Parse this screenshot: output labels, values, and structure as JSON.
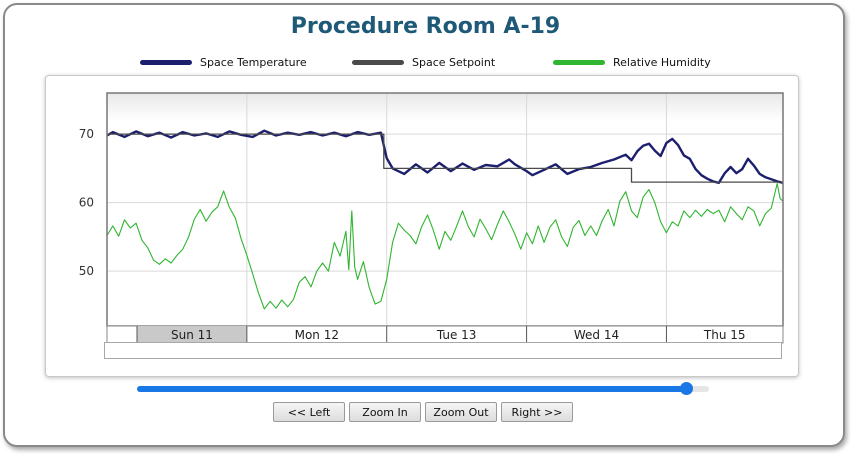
{
  "chart_data": {
    "type": "line",
    "title": "Procedure Room A-19",
    "legend_position": "top",
    "grid": true,
    "ylim": [
      42,
      76
    ],
    "yticks": [
      50,
      60,
      70
    ],
    "x_range": [
      "2020-10-11T00:00",
      "2020-10-15T20:00"
    ],
    "x_ticks": [
      "Sun 11",
      "Mon 12",
      "Tue 13",
      "Wed 14",
      "Thu 15"
    ],
    "selected_tick": "Sun 11",
    "series": [
      {
        "name": "Space Temperature",
        "color": "#1c1f6e",
        "points": [
          [
            "2020-10-11T00:00",
            69.8
          ],
          [
            "2020-10-11T01:00",
            70.3
          ],
          [
            "2020-10-11T03:00",
            69.6
          ],
          [
            "2020-10-11T05:00",
            70.4
          ],
          [
            "2020-10-11T07:00",
            69.7
          ],
          [
            "2020-10-11T09:00",
            70.2
          ],
          [
            "2020-10-11T11:00",
            69.5
          ],
          [
            "2020-10-11T13:00",
            70.3
          ],
          [
            "2020-10-11T15:00",
            69.8
          ],
          [
            "2020-10-11T17:00",
            70.1
          ],
          [
            "2020-10-11T19:00",
            69.6
          ],
          [
            "2020-10-11T21:00",
            70.4
          ],
          [
            "2020-10-11T23:00",
            69.9
          ],
          [
            "2020-10-12T01:00",
            69.6
          ],
          [
            "2020-10-12T03:00",
            70.5
          ],
          [
            "2020-10-12T05:00",
            69.8
          ],
          [
            "2020-10-12T07:00",
            70.2
          ],
          [
            "2020-10-12T09:00",
            69.9
          ],
          [
            "2020-10-12T11:00",
            70.3
          ],
          [
            "2020-10-12T13:00",
            69.8
          ],
          [
            "2020-10-12T15:00",
            70.2
          ],
          [
            "2020-10-12T17:00",
            69.7
          ],
          [
            "2020-10-12T19:00",
            70.3
          ],
          [
            "2020-10-12T21:00",
            69.9
          ],
          [
            "2020-10-12T23:00",
            70.2
          ],
          [
            "2020-10-13T00:00",
            66.5
          ],
          [
            "2020-10-13T01:00",
            65.0
          ],
          [
            "2020-10-13T03:00",
            64.2
          ],
          [
            "2020-10-13T05:00",
            65.6
          ],
          [
            "2020-10-13T07:00",
            64.4
          ],
          [
            "2020-10-13T09:00",
            65.8
          ],
          [
            "2020-10-13T11:00",
            64.6
          ],
          [
            "2020-10-13T13:00",
            65.7
          ],
          [
            "2020-10-13T15:00",
            64.8
          ],
          [
            "2020-10-13T17:00",
            65.5
          ],
          [
            "2020-10-13T19:00",
            65.3
          ],
          [
            "2020-10-13T21:00",
            66.3
          ],
          [
            "2020-10-13T22:00",
            65.6
          ],
          [
            "2020-10-14T00:00",
            64.6
          ],
          [
            "2020-10-14T01:00",
            64.0
          ],
          [
            "2020-10-14T03:00",
            64.8
          ],
          [
            "2020-10-14T05:00",
            65.6
          ],
          [
            "2020-10-14T07:00",
            64.2
          ],
          [
            "2020-10-14T09:00",
            64.9
          ],
          [
            "2020-10-14T11:00",
            65.2
          ],
          [
            "2020-10-14T13:00",
            65.8
          ],
          [
            "2020-10-14T15:00",
            66.3
          ],
          [
            "2020-10-14T17:00",
            67.0
          ],
          [
            "2020-10-14T18:00",
            66.2
          ],
          [
            "2020-10-14T19:00",
            67.5
          ],
          [
            "2020-10-14T20:00",
            68.3
          ],
          [
            "2020-10-14T21:00",
            68.6
          ],
          [
            "2020-10-14T22:00",
            67.6
          ],
          [
            "2020-10-14T23:00",
            66.8
          ],
          [
            "2020-10-15T00:00",
            68.7
          ],
          [
            "2020-10-15T01:00",
            69.3
          ],
          [
            "2020-10-15T02:00",
            68.4
          ],
          [
            "2020-10-15T03:00",
            66.9
          ],
          [
            "2020-10-15T04:00",
            66.4
          ],
          [
            "2020-10-15T05:00",
            64.9
          ],
          [
            "2020-10-15T06:00",
            64.0
          ],
          [
            "2020-10-15T07:00",
            63.5
          ],
          [
            "2020-10-15T08:00",
            63.1
          ],
          [
            "2020-10-15T09:00",
            62.9
          ],
          [
            "2020-10-15T10:00",
            64.3
          ],
          [
            "2020-10-15T11:00",
            65.2
          ],
          [
            "2020-10-15T12:00",
            64.3
          ],
          [
            "2020-10-15T13:00",
            64.9
          ],
          [
            "2020-10-15T14:00",
            66.4
          ],
          [
            "2020-10-15T15:00",
            65.4
          ],
          [
            "2020-10-15T16:00",
            64.2
          ],
          [
            "2020-10-15T17:00",
            63.7
          ],
          [
            "2020-10-15T18:00",
            63.4
          ],
          [
            "2020-10-15T19:00",
            63.1
          ],
          [
            "2020-10-15T20:00",
            62.9
          ]
        ]
      },
      {
        "name": "Space Setpoint",
        "color": "#4a4a4a",
        "points": [
          [
            "2020-10-11T00:00",
            70
          ],
          [
            "2020-10-12T23:30",
            70
          ],
          [
            "2020-10-12T23:30",
            65
          ],
          [
            "2020-10-14T18:00",
            65
          ],
          [
            "2020-10-14T18:00",
            63
          ],
          [
            "2020-10-15T20:00",
            63
          ]
        ]
      },
      {
        "name": "Relative Humidity",
        "color": "#2fb52f",
        "points": [
          [
            "2020-10-11T00:00",
            55.2
          ],
          [
            "2020-10-11T01:00",
            56.6
          ],
          [
            "2020-10-11T02:00",
            55.1
          ],
          [
            "2020-10-11T03:00",
            57.5
          ],
          [
            "2020-10-11T04:00",
            56.3
          ],
          [
            "2020-10-11T05:00",
            57.0
          ],
          [
            "2020-10-11T06:00",
            54.5
          ],
          [
            "2020-10-11T07:00",
            53.4
          ],
          [
            "2020-10-11T08:00",
            51.6
          ],
          [
            "2020-10-11T09:00",
            51.0
          ],
          [
            "2020-10-11T10:00",
            51.8
          ],
          [
            "2020-10-11T11:00",
            51.2
          ],
          [
            "2020-10-11T12:00",
            52.3
          ],
          [
            "2020-10-11T13:00",
            53.2
          ],
          [
            "2020-10-11T14:00",
            55.0
          ],
          [
            "2020-10-11T15:00",
            57.6
          ],
          [
            "2020-10-11T16:00",
            59.0
          ],
          [
            "2020-10-11T17:00",
            57.3
          ],
          [
            "2020-10-11T18:00",
            58.6
          ],
          [
            "2020-10-11T19:00",
            59.4
          ],
          [
            "2020-10-11T20:00",
            61.7
          ],
          [
            "2020-10-11T21:00",
            59.3
          ],
          [
            "2020-10-11T22:00",
            57.8
          ],
          [
            "2020-10-11T23:00",
            54.8
          ],
          [
            "2020-10-12T00:00",
            52.3
          ],
          [
            "2020-10-12T01:00",
            49.6
          ],
          [
            "2020-10-12T02:00",
            46.8
          ],
          [
            "2020-10-12T03:00",
            44.5
          ],
          [
            "2020-10-12T04:00",
            45.6
          ],
          [
            "2020-10-12T05:00",
            44.6
          ],
          [
            "2020-10-12T06:00",
            45.8
          ],
          [
            "2020-10-12T07:00",
            44.8
          ],
          [
            "2020-10-12T08:00",
            45.9
          ],
          [
            "2020-10-12T09:00",
            48.4
          ],
          [
            "2020-10-12T10:00",
            49.2
          ],
          [
            "2020-10-12T11:00",
            47.7
          ],
          [
            "2020-10-12T12:00",
            50.0
          ],
          [
            "2020-10-12T13:00",
            51.2
          ],
          [
            "2020-10-12T14:00",
            50.0
          ],
          [
            "2020-10-12T15:00",
            54.2
          ],
          [
            "2020-10-12T16:00",
            52.2
          ],
          [
            "2020-10-12T17:00",
            55.8
          ],
          [
            "2020-10-12T17:30",
            50.2
          ],
          [
            "2020-10-12T18:00",
            58.8
          ],
          [
            "2020-10-12T18:30",
            50.6
          ],
          [
            "2020-10-12T19:00",
            48.8
          ],
          [
            "2020-10-12T20:00",
            51.4
          ],
          [
            "2020-10-12T21:00",
            47.6
          ],
          [
            "2020-10-12T22:00",
            45.2
          ],
          [
            "2020-10-12T23:00",
            45.6
          ],
          [
            "2020-10-13T00:00",
            48.8
          ],
          [
            "2020-10-13T01:00",
            54.2
          ],
          [
            "2020-10-13T02:00",
            57.0
          ],
          [
            "2020-10-13T03:00",
            56.0
          ],
          [
            "2020-10-13T04:00",
            55.2
          ],
          [
            "2020-10-13T05:00",
            54.0
          ],
          [
            "2020-10-13T06:00",
            56.5
          ],
          [
            "2020-10-13T07:00",
            58.2
          ],
          [
            "2020-10-13T08:00",
            56.0
          ],
          [
            "2020-10-13T09:00",
            53.2
          ],
          [
            "2020-10-13T10:00",
            55.8
          ],
          [
            "2020-10-13T11:00",
            54.5
          ],
          [
            "2020-10-13T12:00",
            56.6
          ],
          [
            "2020-10-13T13:00",
            58.8
          ],
          [
            "2020-10-13T14:00",
            56.5
          ],
          [
            "2020-10-13T15:00",
            55.0
          ],
          [
            "2020-10-13T16:00",
            57.6
          ],
          [
            "2020-10-13T17:00",
            56.2
          ],
          [
            "2020-10-13T18:00",
            54.6
          ],
          [
            "2020-10-13T19:00",
            56.8
          ],
          [
            "2020-10-13T20:00",
            58.8
          ],
          [
            "2020-10-13T21:00",
            57.2
          ],
          [
            "2020-10-13T22:00",
            55.4
          ],
          [
            "2020-10-13T23:00",
            53.2
          ],
          [
            "2020-10-14T00:00",
            55.6
          ],
          [
            "2020-10-14T01:00",
            54.0
          ],
          [
            "2020-10-14T02:00",
            56.6
          ],
          [
            "2020-10-14T03:00",
            54.2
          ],
          [
            "2020-10-14T04:00",
            56.4
          ],
          [
            "2020-10-14T05:00",
            57.5
          ],
          [
            "2020-10-14T06:00",
            55.0
          ],
          [
            "2020-10-14T07:00",
            53.6
          ],
          [
            "2020-10-14T08:00",
            56.4
          ],
          [
            "2020-10-14T09:00",
            57.4
          ],
          [
            "2020-10-14T10:00",
            55.2
          ],
          [
            "2020-10-14T11:00",
            56.6
          ],
          [
            "2020-10-14T12:00",
            55.2
          ],
          [
            "2020-10-14T13:00",
            57.4
          ],
          [
            "2020-10-14T14:00",
            59.0
          ],
          [
            "2020-10-14T15:00",
            56.6
          ],
          [
            "2020-10-14T16:00",
            60.2
          ],
          [
            "2020-10-14T17:00",
            61.6
          ],
          [
            "2020-10-14T18:00",
            58.8
          ],
          [
            "2020-10-14T19:00",
            57.8
          ],
          [
            "2020-10-14T20:00",
            60.8
          ],
          [
            "2020-10-14T21:00",
            61.9
          ],
          [
            "2020-10-14T22:00",
            60.0
          ],
          [
            "2020-10-14T23:00",
            57.2
          ],
          [
            "2020-10-15T00:00",
            55.6
          ],
          [
            "2020-10-15T01:00",
            57.2
          ],
          [
            "2020-10-15T02:00",
            56.6
          ],
          [
            "2020-10-15T03:00",
            58.8
          ],
          [
            "2020-10-15T04:00",
            57.8
          ],
          [
            "2020-10-15T05:00",
            58.9
          ],
          [
            "2020-10-15T06:00",
            58.0
          ],
          [
            "2020-10-15T07:00",
            59.0
          ],
          [
            "2020-10-15T08:00",
            58.4
          ],
          [
            "2020-10-15T09:00",
            58.9
          ],
          [
            "2020-10-15T10:00",
            57.2
          ],
          [
            "2020-10-15T11:00",
            59.4
          ],
          [
            "2020-10-15T12:00",
            58.4
          ],
          [
            "2020-10-15T13:00",
            57.5
          ],
          [
            "2020-10-15T14:00",
            59.4
          ],
          [
            "2020-10-15T15:00",
            58.8
          ],
          [
            "2020-10-15T16:00",
            56.6
          ],
          [
            "2020-10-15T17:00",
            58.4
          ],
          [
            "2020-10-15T18:00",
            59.2
          ],
          [
            "2020-10-15T19:00",
            62.8
          ],
          [
            "2020-10-15T19:30",
            60.6
          ],
          [
            "2020-10-15T20:00",
            60.2
          ]
        ]
      }
    ]
  },
  "slider": {
    "value": 0.96
  },
  "buttons": {
    "left": "<< Left",
    "zoom_in": "Zoom In",
    "zoom_out": "Zoom Out",
    "right": "Right >>"
  }
}
